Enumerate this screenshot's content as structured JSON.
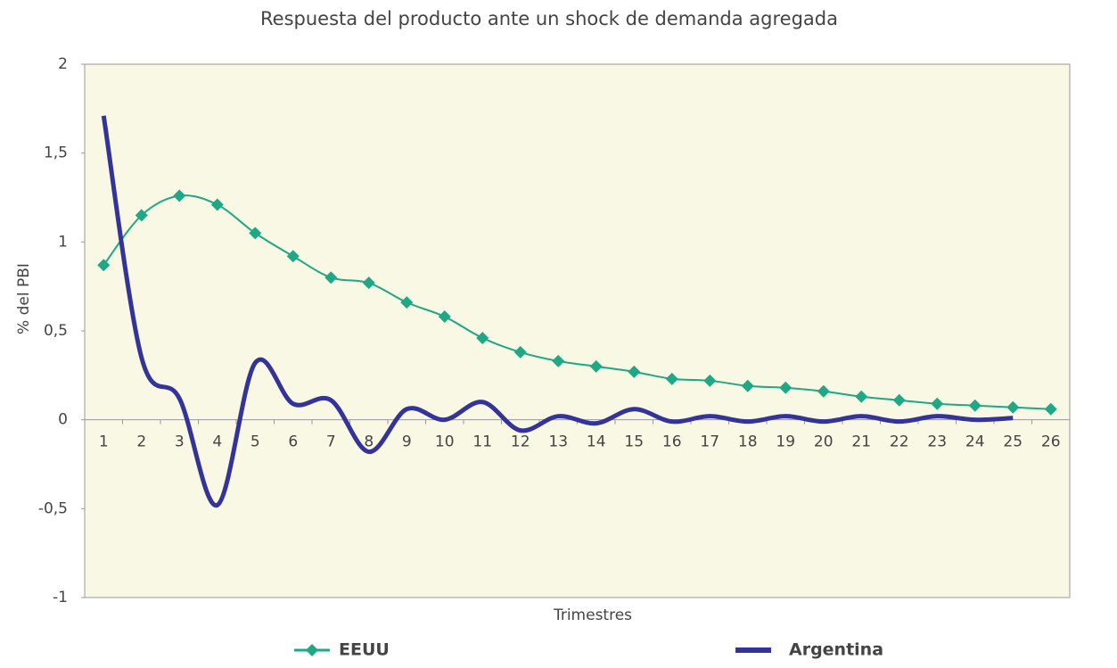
{
  "chart_data": {
    "type": "line",
    "title": "Respuesta del producto ante un shock de demanda agregada",
    "xlabel": "Trimestres",
    "ylabel": "% del PBI",
    "categories": [
      "1",
      "2",
      "3",
      "4",
      "5",
      "6",
      "7",
      "8",
      "9",
      "10",
      "11",
      "12",
      "13",
      "14",
      "15",
      "16",
      "17",
      "18",
      "19",
      "20",
      "21",
      "22",
      "23",
      "24",
      "25",
      "26"
    ],
    "series": [
      {
        "name": "EEUU",
        "color": "#1ea886",
        "marker": "diamond",
        "width": 2,
        "values": [
          0.87,
          1.15,
          1.26,
          1.21,
          1.05,
          0.92,
          0.8,
          0.77,
          0.66,
          0.58,
          0.46,
          0.38,
          0.33,
          0.3,
          0.27,
          0.23,
          0.22,
          0.19,
          0.18,
          0.16,
          0.13,
          0.11,
          0.09,
          0.08,
          0.07,
          0.06
        ]
      },
      {
        "name": "Argentina",
        "color": "#333399",
        "marker": null,
        "width": 5,
        "values": [
          1.71,
          0.35,
          0.12,
          -0.48,
          0.32,
          0.09,
          0.11,
          -0.18,
          0.06,
          0.0,
          0.1,
          -0.06,
          0.02,
          -0.02,
          0.06,
          -0.01,
          0.02,
          -0.01,
          0.02,
          -0.01,
          0.02,
          -0.01,
          0.02,
          0.0,
          0.01,
          null
        ]
      }
    ],
    "ylim": [
      -1,
      2
    ],
    "yticks": [
      {
        "value": -1,
        "label": "-1"
      },
      {
        "value": -0.5,
        "label": "-0,5"
      },
      0,
      {
        "value": 0.5,
        "label": "0,5"
      },
      1,
      {
        "value": 1.5,
        "label": "1,5"
      },
      2
    ],
    "smooth": true,
    "grid": false,
    "legend": "bottom"
  }
}
